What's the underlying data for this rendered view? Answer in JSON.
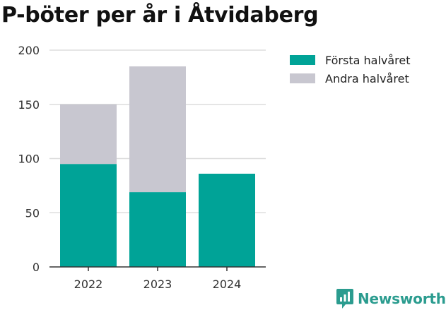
{
  "title": "P-böter per år i Åtvidaberg",
  "colors": {
    "first_half": "#00a397",
    "second_half": "#c8c7d0",
    "brand": "#2b9c8f",
    "axis": "#333333",
    "grid": "#dddddd"
  },
  "brand": {
    "name": "Newsworthy",
    "icon": "newsworthy-logo-icon"
  },
  "chart_data": {
    "type": "bar",
    "stacked": true,
    "categories": [
      "2022",
      "2023",
      "2024"
    ],
    "series": [
      {
        "name": "Första halvåret",
        "values": [
          95,
          69,
          86
        ]
      },
      {
        "name": "Andra halvåret",
        "values": [
          55,
          116,
          null
        ]
      }
    ],
    "ylim": [
      0,
      200
    ],
    "yticks": [
      0,
      50,
      100,
      150,
      200
    ],
    "grid": true,
    "legend_position": "top-right"
  }
}
